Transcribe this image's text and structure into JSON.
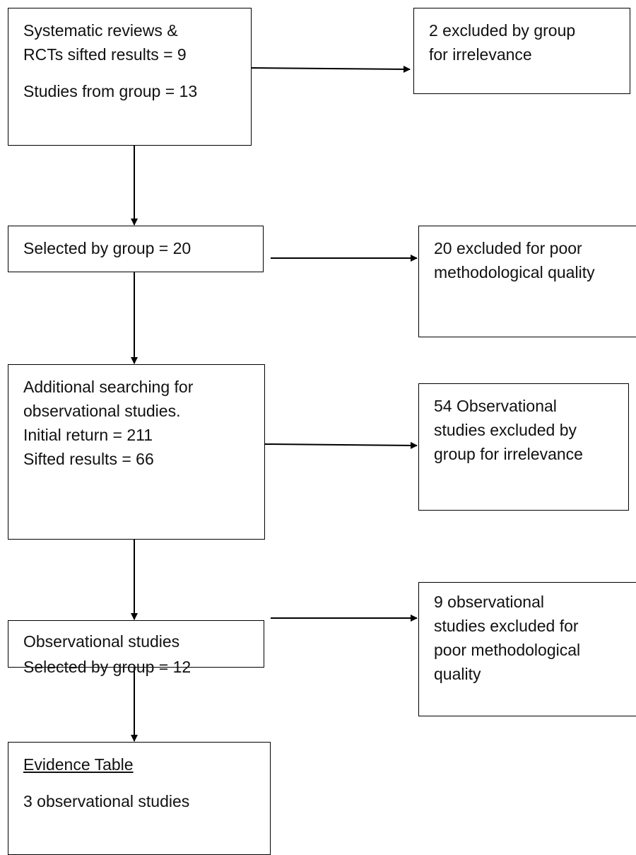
{
  "main_flow": {
    "box1": {
      "line1": "Systematic reviews &",
      "line2": "RCTs sifted results = 9",
      "line3": "Studies from group = 13"
    },
    "box2": {
      "line1": "Selected by group = 20"
    },
    "box3": {
      "line1": "Additional searching for",
      "line2": "observational studies.",
      "line3": "Initial return = 211",
      "line4": "Sifted results = 66"
    },
    "box4": {
      "line1": "Observational studies",
      "line2": "Selected by group = 12"
    },
    "box5": {
      "heading": "Evidence Table",
      "line1": "3 observational studies"
    }
  },
  "exclusions": {
    "excl1": {
      "line1": "2 excluded by group",
      "line2": "for irrelevance"
    },
    "excl2": {
      "line1": "20 excluded for poor",
      "line2": "methodological quality"
    },
    "excl3": {
      "line1": "54 Observational",
      "line2": "studies excluded by",
      "line3": "group for irrelevance"
    },
    "excl4": {
      "line1": "9 observational",
      "line2": "studies excluded for",
      "line3": "poor methodological",
      "line4": "quality"
    }
  }
}
